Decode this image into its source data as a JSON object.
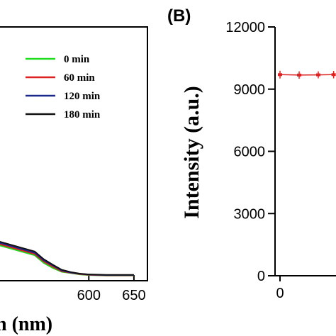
{
  "panels": {
    "right_label": "(B)"
  },
  "chart_data": [
    {
      "type": "line",
      "xlabel": "n (nm)",
      "ylabel": "",
      "xlim": [
        500,
        665
      ],
      "ylim": [
        0,
        1
      ],
      "xticks": [
        600,
        650
      ],
      "legend_position": "top-right",
      "series": [
        {
          "name": "0 min",
          "color": "#22dd22",
          "x": [
            500,
            540,
            550,
            560,
            570,
            580,
            590,
            600,
            620,
            650
          ],
          "y": [
            0.14,
            0.1,
            0.07,
            0.05,
            0.035,
            0.03,
            0.025,
            0.022,
            0.02,
            0.02
          ]
        },
        {
          "name": "60 min",
          "color": "#dd2222",
          "x": [
            500,
            540,
            550,
            560,
            570,
            580,
            590,
            600,
            620,
            650
          ],
          "y": [
            0.145,
            0.105,
            0.075,
            0.055,
            0.037,
            0.031,
            0.026,
            0.023,
            0.021,
            0.021
          ]
        },
        {
          "name": "120 min",
          "color": "#1a2a8c",
          "x": [
            500,
            540,
            550,
            560,
            570,
            580,
            590,
            600,
            620,
            650
          ],
          "y": [
            0.15,
            0.11,
            0.08,
            0.06,
            0.04,
            0.032,
            0.027,
            0.024,
            0.022,
            0.022
          ]
        },
        {
          "name": "180 min",
          "color": "#111111",
          "x": [
            500,
            540,
            550,
            560,
            570,
            580,
            590,
            600,
            620,
            650
          ],
          "y": [
            0.155,
            0.115,
            0.085,
            0.063,
            0.043,
            0.034,
            0.028,
            0.025,
            0.023,
            0.023
          ]
        }
      ]
    },
    {
      "type": "scatter",
      "ylabel": "Intensity (a.u.)",
      "xlim": [
        -5,
        100
      ],
      "ylim": [
        0,
        12000
      ],
      "yticks": [
        0,
        3000,
        6000,
        9000,
        12000
      ],
      "xticks": [
        0
      ],
      "series": [
        {
          "name": "",
          "color": "#dd2222",
          "x": [
            0,
            10,
            20,
            28
          ],
          "y": [
            9700,
            9680,
            9690,
            9700
          ],
          "err": [
            120,
            110,
            100,
            110
          ]
        }
      ]
    }
  ]
}
